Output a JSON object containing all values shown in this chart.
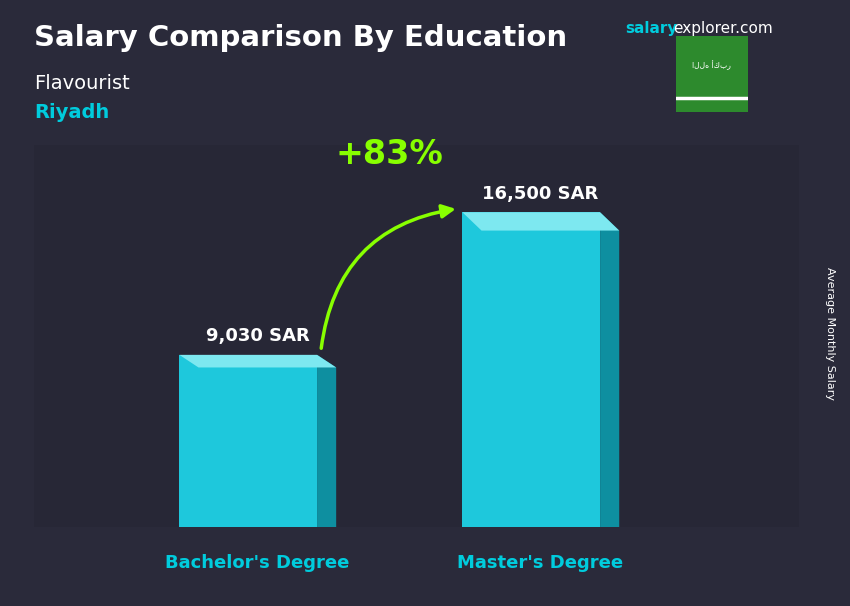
{
  "title1": "Salary Comparison By Education",
  "salary_text": "salary",
  "explorer_text": "explorer.com",
  "subtitle": "Flavourist",
  "city": "Riyadh",
  "categories": [
    "Bachelor's Degree",
    "Master's Degree"
  ],
  "values": [
    9030,
    16500
  ],
  "value_labels": [
    "9,030 SAR",
    "16,500 SAR"
  ],
  "pct_change": "+83%",
  "bar_color_face": "#1ec8dc",
  "bar_color_side": "#0e8fa0",
  "bar_color_top": "#7de8f0",
  "bg_color": "#2a2a3a",
  "title_color": "#ffffff",
  "subtitle_color": "#ffffff",
  "city_color": "#00ccdd",
  "xlabel_color": "#00ccdd",
  "ylabel_text": "Average Monthly Salary",
  "salary_label_color": "#ffffff",
  "pct_color": "#88ff00",
  "arrow_color": "#88ff00",
  "flag_bg": "#2d8a2d",
  "ylim": [
    0,
    20000
  ],
  "bar_width": 0.18,
  "figsize": [
    8.5,
    6.06
  ],
  "dpi": 100,
  "positions": [
    0.28,
    0.65
  ]
}
